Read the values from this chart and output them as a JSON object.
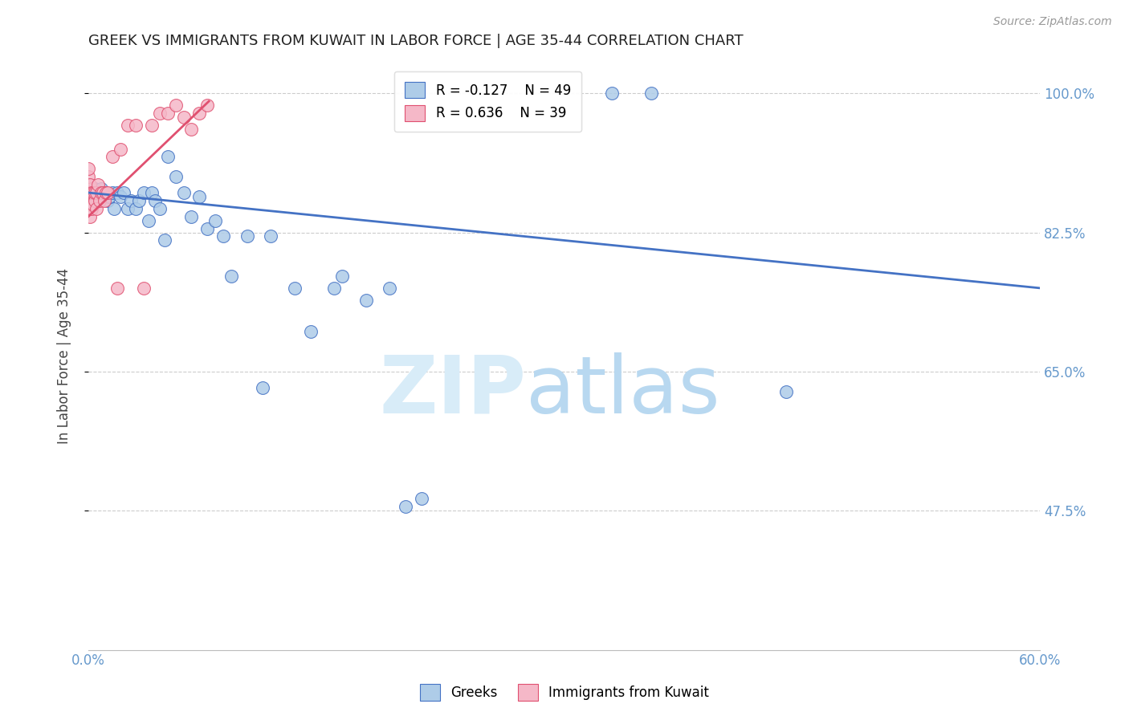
{
  "title": "GREEK VS IMMIGRANTS FROM KUWAIT IN LABOR FORCE | AGE 35-44 CORRELATION CHART",
  "source": "Source: ZipAtlas.com",
  "ylabel": "In Labor Force | Age 35-44",
  "ytick_labels": [
    "100.0%",
    "82.5%",
    "65.0%",
    "47.5%"
  ],
  "ytick_values": [
    1.0,
    0.825,
    0.65,
    0.475
  ],
  "xlim": [
    0.0,
    0.6
  ],
  "ylim": [
    0.3,
    1.04
  ],
  "legend_blue_r": "-0.127",
  "legend_blue_n": "49",
  "legend_pink_r": "0.636",
  "legend_pink_n": "39",
  "blue_color": "#aecce8",
  "pink_color": "#f5b8c8",
  "line_blue": "#4472c4",
  "line_pink": "#e05070",
  "blue_points_x": [
    0.002,
    0.003,
    0.004,
    0.005,
    0.006,
    0.007,
    0.008,
    0.009,
    0.01,
    0.012,
    0.013,
    0.015,
    0.016,
    0.018,
    0.02,
    0.022,
    0.025,
    0.027,
    0.03,
    0.032,
    0.035,
    0.038,
    0.04,
    0.042,
    0.045,
    0.048,
    0.05,
    0.055,
    0.06,
    0.065,
    0.07,
    0.075,
    0.08,
    0.085,
    0.09,
    0.1,
    0.11,
    0.115,
    0.13,
    0.14,
    0.155,
    0.16,
    0.175,
    0.19,
    0.2,
    0.21,
    0.33,
    0.355,
    0.44
  ],
  "blue_points_y": [
    0.87,
    0.875,
    0.88,
    0.87,
    0.865,
    0.875,
    0.88,
    0.875,
    0.87,
    0.865,
    0.87,
    0.875,
    0.855,
    0.875,
    0.87,
    0.875,
    0.855,
    0.865,
    0.855,
    0.865,
    0.875,
    0.84,
    0.875,
    0.865,
    0.855,
    0.815,
    0.92,
    0.895,
    0.875,
    0.845,
    0.87,
    0.83,
    0.84,
    0.82,
    0.77,
    0.82,
    0.63,
    0.82,
    0.755,
    0.7,
    0.755,
    0.77,
    0.74,
    0.755,
    0.48,
    0.49,
    1.0,
    1.0,
    0.625
  ],
  "pink_points_x": [
    0.0,
    0.0,
    0.0,
    0.0,
    0.0,
    0.0,
    0.001,
    0.001,
    0.001,
    0.001,
    0.002,
    0.002,
    0.003,
    0.003,
    0.004,
    0.004,
    0.005,
    0.005,
    0.006,
    0.007,
    0.008,
    0.009,
    0.01,
    0.011,
    0.012,
    0.015,
    0.018,
    0.02,
    0.025,
    0.03,
    0.035,
    0.04,
    0.045,
    0.05,
    0.055,
    0.06,
    0.065,
    0.07,
    0.075
  ],
  "pink_points_y": [
    0.855,
    0.865,
    0.875,
    0.885,
    0.895,
    0.905,
    0.845,
    0.865,
    0.875,
    0.885,
    0.855,
    0.875,
    0.86,
    0.875,
    0.865,
    0.875,
    0.855,
    0.875,
    0.885,
    0.865,
    0.875,
    0.875,
    0.865,
    0.875,
    0.875,
    0.92,
    0.755,
    0.93,
    0.96,
    0.96,
    0.755,
    0.96,
    0.975,
    0.975,
    0.985,
    0.97,
    0.955,
    0.975,
    0.985
  ],
  "blue_trend_x": [
    0.0,
    0.6
  ],
  "blue_trend_y": [
    0.875,
    0.755
  ],
  "pink_trend_x": [
    0.0,
    0.076
  ],
  "pink_trend_y": [
    0.845,
    0.99
  ],
  "grid_color": "#cccccc",
  "tick_color": "#6699cc",
  "title_color": "#222222",
  "source_color": "#999999"
}
